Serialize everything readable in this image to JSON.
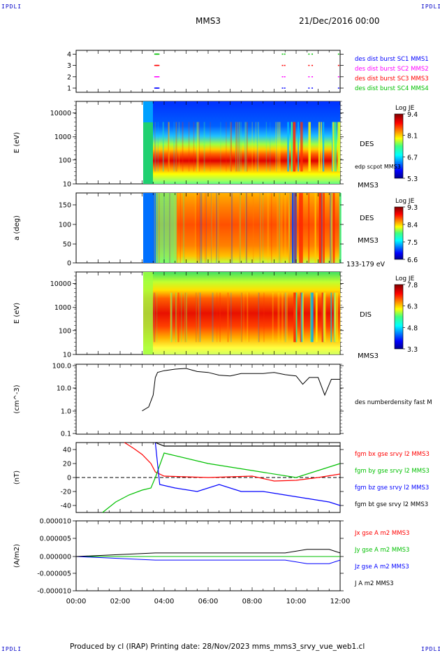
{
  "header": {
    "spacecraft": "MMS3",
    "date": "21/Dec/2016 00:00",
    "corner_label": "IPDLI"
  },
  "footer": {
    "text": "Produced by cl (IRAP)   Printing date: 28/Nov/2023   mms_mms3_srvy_vue_web1.cl"
  },
  "time_axis": {
    "ticks": [
      "00:00",
      "02:00",
      "04:00",
      "06:00",
      "08:00",
      "10:00",
      "12:00"
    ],
    "range_hours": [
      0,
      12
    ]
  },
  "colors": {
    "blue": "#0000ff",
    "magenta": "#ff00ff",
    "red": "#ff0000",
    "green": "#00c000",
    "black": "#000000"
  },
  "panels": {
    "burst": {
      "yticks": [
        "4",
        "3",
        "2",
        "1"
      ],
      "labels": [
        {
          "text": "des dist burst SC1 MMS1",
          "color": "#0000ff"
        },
        {
          "text": "des dist burst SC2 MMS2",
          "color": "#ff00ff"
        },
        {
          "text": "des dist burst SC3 MMS3",
          "color": "#ff0000"
        },
        {
          "text": "des dist burst SC4 MMS4",
          "color": "#00c000"
        }
      ]
    },
    "des_energy": {
      "ylabel": "E (eV)",
      "yticks": [
        "10000",
        "1000",
        "100",
        "10"
      ],
      "label": "DES",
      "sub": "edp scpot MMS3",
      "sc": "MMS3",
      "cbar_title": "Log JE",
      "cbar_ticks": [
        "9.4",
        "8.1",
        "6.7",
        "5.3"
      ]
    },
    "des_pitch": {
      "ylabel": "a (deg)",
      "yticks": [
        "150",
        "100",
        "50",
        "0"
      ],
      "label": "DES",
      "sc": "MMS3",
      "sub": "133-179 eV",
      "cbar_title": "Log JE",
      "cbar_ticks": [
        "9.3",
        "8.4",
        "7.5",
        "6.6"
      ]
    },
    "dis_energy": {
      "ylabel": "E (eV)",
      "yticks": [
        "10000",
        "1000",
        "100",
        "10"
      ],
      "label": "DIS",
      "sc": "MMS3",
      "cbar_title": "Log JE",
      "cbar_ticks": [
        "7.8",
        "6.3",
        "4.8",
        "3.3"
      ]
    },
    "density": {
      "ylabel": "(cm^-3)",
      "yticks": [
        "100.0",
        "10.0",
        "1.0",
        "0.1"
      ],
      "label": "des numberdensity fast M"
    },
    "bfield": {
      "ylabel": "(nT)",
      "yticks": [
        "40",
        "20",
        "0",
        "-20",
        "-40"
      ],
      "labels": [
        {
          "text": "fgm bx gse srvy l2 MMS3",
          "color": "#ff0000"
        },
        {
          "text": "fgm by gse srvy l2 MMS3",
          "color": "#00c000"
        },
        {
          "text": "fgm bz gse srvy l2 MMS3",
          "color": "#0000ff"
        },
        {
          "text": "fgm bt gse srvy l2 MMS3",
          "color": "#000000"
        }
      ]
    },
    "current": {
      "ylabel": "(A/m2)",
      "yticks": [
        "0.000010",
        "0.000005",
        "0.000000",
        "-0.000005",
        "-0.000010"
      ],
      "labels": [
        {
          "text": "Jx gse A m2 MMS3",
          "color": "#ff0000"
        },
        {
          "text": "Jy gse A m2 MMS3",
          "color": "#00c000"
        },
        {
          "text": "Jz gse A m2 MMS3",
          "color": "#0000ff"
        },
        {
          "text": "J A m2 MMS3",
          "color": "#000000"
        }
      ]
    }
  },
  "chart_data": [
    {
      "type": "scatter",
      "panel": "burst intervals",
      "x_units": "hours UT",
      "series": [
        {
          "name": "des dist burst SC1 MMS1",
          "y": 1,
          "x": [
            3.55,
            3.6,
            9.35,
            9.45,
            10.55,
            10.7,
            11.9
          ]
        },
        {
          "name": "des dist burst SC2 MMS2",
          "y": 2,
          "x": [
            3.55,
            3.6,
            9.35,
            9.45,
            10.55,
            10.7,
            11.9
          ]
        },
        {
          "name": "des dist burst SC3 MMS3",
          "y": 3,
          "x": [
            3.55,
            3.6,
            9.35,
            9.45,
            10.55,
            10.7,
            11.9
          ]
        },
        {
          "name": "des dist burst SC4 MMS4",
          "y": 4,
          "x": [
            3.55,
            3.6,
            9.35,
            9.45,
            10.55,
            10.7,
            11.9
          ]
        }
      ]
    },
    {
      "type": "heatmap",
      "panel": "DES energy spectrogram",
      "ylabel": "E (eV)",
      "yscale": "log",
      "ylim": [
        10,
        30000
      ],
      "colorbar": {
        "title": "Log JE",
        "range": [
          5.3,
          9.4
        ]
      },
      "data_start_hours": 3.0,
      "peak_energy_eV": 100
    },
    {
      "type": "heatmap",
      "panel": "DES pitch angle spectrogram",
      "ylabel": "a (deg)",
      "ylim": [
        0,
        180
      ],
      "colorbar": {
        "title": "Log JE",
        "range": [
          6.6,
          9.3
        ]
      },
      "data_start_hours": 3.0
    },
    {
      "type": "heatmap",
      "panel": "DIS energy spectrogram",
      "ylabel": "E (eV)",
      "yscale": "log",
      "ylim": [
        10,
        30000
      ],
      "colorbar": {
        "title": "Log JE",
        "range": [
          3.3,
          7.8
        ]
      },
      "data_start_hours": 3.0,
      "peak_energy_eV": 1000
    },
    {
      "type": "line",
      "panel": "electron density",
      "ylabel": "(cm^-3)",
      "yscale": "log",
      "ylim": [
        0.1,
        100
      ],
      "series": [
        {
          "name": "des numberdensity fast M",
          "x": [
            3.0,
            3.3,
            3.5,
            3.6,
            3.7,
            4.0,
            4.5,
            5.0,
            5.5,
            6.0,
            6.5,
            7.0,
            7.5,
            8.0,
            8.5,
            9.0,
            9.5,
            10.0,
            10.3,
            10.6,
            11.0,
            11.3,
            11.6,
            12.0
          ],
          "y": [
            1.0,
            1.5,
            5,
            30,
            50,
            60,
            70,
            75,
            55,
            50,
            38,
            35,
            45,
            45,
            45,
            50,
            40,
            35,
            15,
            30,
            30,
            5,
            25,
            25
          ]
        }
      ]
    },
    {
      "type": "line",
      "panel": "magnetic field",
      "ylabel": "(nT)",
      "ylim": [
        -50,
        50
      ],
      "series": [
        {
          "name": "fgm bx gse srvy l2 MMS3",
          "x": [
            2.2,
            2.6,
            3.0,
            3.4,
            3.6,
            4.0,
            6.0,
            8.0,
            9.0,
            10.0,
            11.0,
            12.0
          ],
          "y": [
            50,
            42,
            33,
            20,
            8,
            2,
            0,
            2,
            -5,
            -4,
            0,
            5
          ]
        },
        {
          "name": "fgm by gse srvy l2 MMS3",
          "x": [
            1.2,
            1.8,
            2.4,
            3.0,
            3.4,
            3.6,
            4.0,
            6.0,
            8.0,
            10.0,
            12.0
          ],
          "y": [
            -50,
            -35,
            -25,
            -18,
            -15,
            0,
            35,
            20,
            10,
            0,
            20
          ]
        },
        {
          "name": "fgm bz gse srvy l2 MMS3",
          "x": [
            3.6,
            3.8,
            4.5,
            5.5,
            6.5,
            7.5,
            8.5,
            9.5,
            10.5,
            11.5,
            12.0
          ],
          "y": [
            50,
            -10,
            -15,
            -20,
            -10,
            -20,
            -20,
            -25,
            -30,
            -35,
            -40
          ]
        },
        {
          "name": "fgm bt gse srvy l2 MMS3",
          "x": [
            3.6,
            4.0,
            6.0,
            8.0,
            10.0,
            12.0
          ],
          "y": [
            50,
            45,
            45,
            45,
            45,
            45
          ]
        }
      ]
    },
    {
      "type": "line",
      "panel": "current density",
      "ylabel": "(A/m2)",
      "ylim": [
        -1e-05,
        1e-05
      ],
      "series": [
        {
          "name": "Jx gse A m2 MMS3",
          "x": [
            0,
            12
          ],
          "y": [
            0,
            0
          ]
        },
        {
          "name": "Jy gse A m2 MMS3",
          "x": [
            0,
            12
          ],
          "y": [
            0,
            0
          ]
        },
        {
          "name": "Jz gse A m2 MMS3",
          "x": [
            0,
            3.6,
            9.5,
            10.5,
            11.5,
            12
          ],
          "y": [
            0,
            -1e-06,
            -1e-06,
            -2e-06,
            -2e-06,
            -1e-06
          ]
        },
        {
          "name": "J A m2 MMS3",
          "x": [
            0,
            3.6,
            9.5,
            10.5,
            11.5,
            12
          ],
          "y": [
            0,
            1e-06,
            1e-06,
            2e-06,
            2e-06,
            1e-06
          ]
        }
      ]
    }
  ]
}
